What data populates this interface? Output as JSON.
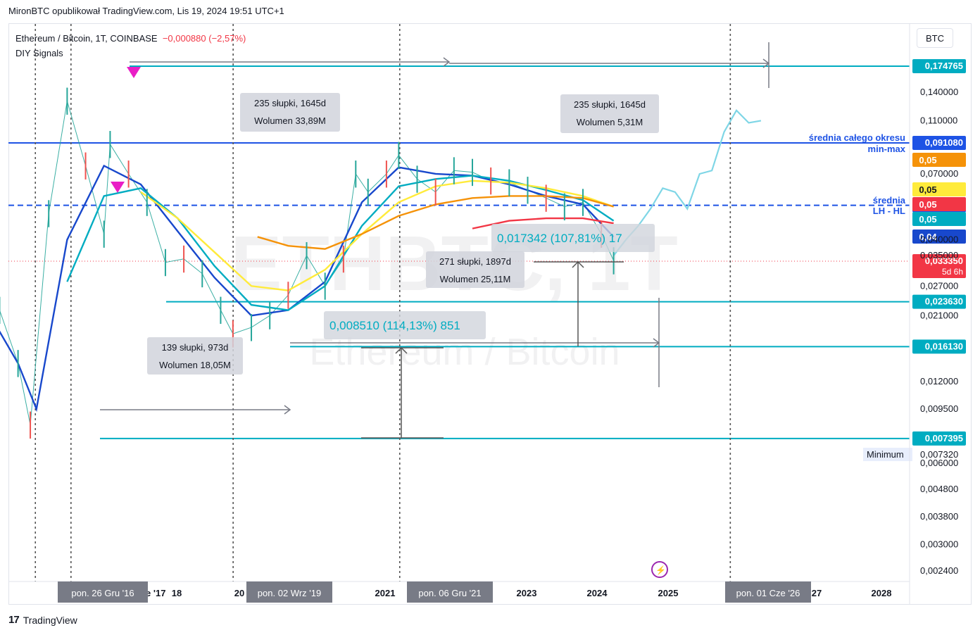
{
  "header": {
    "published_by": "MironBTC opublikował TradingView.com, Lis 19, 2024 19:51 UTC+1"
  },
  "legend": {
    "symbol": "Ethereum / Bitcoin, 1T, COINBASE",
    "change": "−0,000880 (−2,57%)",
    "indicator": "DIY Signals"
  },
  "currency_button": "BTC",
  "watermark": {
    "big": "ETHBTC, 1T",
    "small": "Ethereum / Bitcoin"
  },
  "colors": {
    "cyan_line": "#00acc1",
    "blue_line": "#1848cc",
    "dark_blue_level": "#1e53e5",
    "orange_ma": "#f59208",
    "yellow_ma": "#ffeb3b",
    "red_ma": "#f23645",
    "candle_up": "#26a69a",
    "candle_down": "#ef5350",
    "measure_gray": "#787b86",
    "signal_marker": "#e91ec6",
    "ghost_path": "#7fd6e6"
  },
  "chart_data": {
    "type": "line",
    "title": "Ethereum / Bitcoin, 1T, COINBASE",
    "y_scale": "log",
    "ylim": [
      0.0021,
      0.19
    ],
    "xlim": [
      "2016-04-01",
      "2028-11-01"
    ],
    "price_axis_ticks": [
      "0,140000",
      "0,110000",
      "0,070000",
      "0,040000",
      "0,035000",
      "0,027000",
      "0,021000",
      "0,012000",
      "0,009500",
      "0,006000",
      "0,004800",
      "0,003800",
      "0,003000",
      "0,002400"
    ],
    "time_axis_ticks": [
      "2017",
      "2018",
      "2019",
      "2020",
      "2021",
      "2022",
      "2023",
      "2024",
      "2025",
      "2026",
      "2027",
      "2028"
    ],
    "time_axis_labels_visible": [
      "ze '17",
      "18",
      "20",
      "2021",
      "2023",
      "2024",
      "2025",
      "27",
      "2028"
    ],
    "time_markers": [
      "pon. 26 Gru '16",
      "pon. 02 Wrz '19",
      "pon. 06 Gru '21",
      "pon. 01 Cze '26"
    ],
    "horizontal_levels": [
      {
        "price": 0.174765,
        "label": "0,174765",
        "color": "#00acc1",
        "style": "solid"
      },
      {
        "price": 0.09108,
        "label": "0,091080",
        "color": "#1e53e5",
        "style": "solid",
        "note": "średnia całego okresu min-max"
      },
      {
        "price": 0.053605,
        "label": "0,053605",
        "color": "#1e53e5",
        "style": "dashed",
        "note": "średnia LH - HL"
      },
      {
        "price": 0.03335,
        "label": "0,033350",
        "color": "#f23645",
        "style": "dotted",
        "note": "5d 6h"
      },
      {
        "price": 0.02363,
        "label": "0,023630",
        "color": "#00acc1",
        "style": "solid"
      },
      {
        "price": 0.01613,
        "label": "0,016130",
        "color": "#00acc1",
        "style": "solid"
      },
      {
        "price": 0.007395,
        "label": "0,007395",
        "color": "#00acc1",
        "style": "solid"
      }
    ],
    "minimum": {
      "label": "Minimum",
      "price": "0,007320"
    },
    "ma_value_labels": [
      {
        "label": "0,05",
        "color": "#f59208"
      },
      {
        "label": "0,05",
        "color": "#ffeb3b"
      },
      {
        "label": "0,05",
        "color": "#f23645"
      },
      {
        "label": "0,05",
        "color": "#00acc1"
      },
      {
        "label": "0,04",
        "color": "#1848cc"
      }
    ],
    "level_notes": [
      "średnia całego okresu",
      "min-max",
      "średnia",
      "LH - HL"
    ],
    "measurements": [
      {
        "bars": "235 słupki, 1645d",
        "volume": "Wolumen 33,89M"
      },
      {
        "bars": "235 słupki, 1645d",
        "volume": "Wolumen 5,31M"
      },
      {
        "bars": "139 słupki, 973d",
        "volume": "Wolumen 18,05M"
      },
      {
        "bars": "271 słupki, 1897d",
        "volume": "Wolumen 25,11M"
      }
    ],
    "price_ranges": [
      {
        "text": "0,008510 (114,13%) 851"
      },
      {
        "text": "0,017342 (107,81%) 17"
      }
    ],
    "series": [
      {
        "name": "ETHBTC close",
        "color": "#26a69a",
        "x": [
          "2016-04",
          "2016-07",
          "2016-10",
          "2016-12",
          "2017-03",
          "2017-06",
          "2017-09",
          "2017-12",
          "2018-01",
          "2018-04",
          "2018-07",
          "2018-10",
          "2019-01",
          "2019-04",
          "2019-07",
          "2019-09",
          "2019-12",
          "2020-03",
          "2020-06",
          "2020-09",
          "2020-12",
          "2021-03",
          "2021-05",
          "2021-07",
          "2021-10",
          "2021-12",
          "2022-03",
          "2022-06",
          "2022-09",
          "2022-12",
          "2023-03",
          "2023-06",
          "2023-09",
          "2023-12",
          "2024-03",
          "2024-06",
          "2024-09",
          "2024-11"
        ],
        "y": [
          0.028,
          0.022,
          0.014,
          0.0083,
          0.05,
          0.13,
          0.075,
          0.042,
          0.09,
          0.07,
          0.055,
          0.033,
          0.034,
          0.03,
          0.022,
          0.018,
          0.019,
          0.021,
          0.025,
          0.035,
          0.027,
          0.034,
          0.07,
          0.06,
          0.07,
          0.082,
          0.067,
          0.06,
          0.072,
          0.071,
          0.066,
          0.065,
          0.061,
          0.057,
          0.053,
          0.055,
          0.042,
          0.0335
        ]
      },
      {
        "name": "Fast MA",
        "color": "#1848cc",
        "x": [
          "2016-04",
          "2016-10",
          "2017-01",
          "2017-06",
          "2017-12",
          "2018-06",
          "2018-12",
          "2019-06",
          "2019-12",
          "2020-06",
          "2020-12",
          "2021-06",
          "2021-12",
          "2022-06",
          "2022-12",
          "2023-06",
          "2023-12",
          "2024-06",
          "2024-11"
        ],
        "y": [
          0.024,
          0.014,
          0.0095,
          0.04,
          0.075,
          0.064,
          0.043,
          0.029,
          0.021,
          0.022,
          0.028,
          0.055,
          0.074,
          0.07,
          0.069,
          0.064,
          0.058,
          0.054,
          0.041
        ]
      },
      {
        "name": "Slow MA",
        "color": "#00acc1",
        "x": [
          "2017-06",
          "2017-12",
          "2018-06",
          "2018-12",
          "2019-06",
          "2019-12",
          "2020-06",
          "2020-12",
          "2021-06",
          "2021-12",
          "2022-06",
          "2022-12",
          "2023-06",
          "2023-12",
          "2024-06",
          "2024-11"
        ],
        "y": [
          0.028,
          0.058,
          0.062,
          0.048,
          0.032,
          0.023,
          0.022,
          0.027,
          0.045,
          0.063,
          0.067,
          0.069,
          0.066,
          0.061,
          0.056,
          0.047
        ]
      },
      {
        "name": "Yellow MA",
        "color": "#ffeb3b",
        "x": [
          "2018-06",
          "2018-12",
          "2019-06",
          "2019-12",
          "2020-06",
          "2020-12",
          "2021-06",
          "2021-12",
          "2022-06",
          "2022-12",
          "2023-06",
          "2023-12",
          "2024-06",
          "2024-11"
        ],
        "y": [
          0.06,
          0.048,
          0.036,
          0.027,
          0.026,
          0.031,
          0.042,
          0.055,
          0.063,
          0.066,
          0.065,
          0.062,
          0.058,
          0.053
        ]
      },
      {
        "name": "Orange MA",
        "color": "#f59208",
        "x": [
          "2020-01",
          "2020-06",
          "2020-12",
          "2021-06",
          "2021-12",
          "2022-06",
          "2022-12",
          "2023-06",
          "2023-12",
          "2024-06",
          "2024-11"
        ],
        "y": [
          0.041,
          0.038,
          0.037,
          0.042,
          0.049,
          0.054,
          0.057,
          0.058,
          0.058,
          0.057,
          0.053
        ]
      },
      {
        "name": "Red MA",
        "color": "#f23645",
        "x": [
          "2022-12",
          "2023-06",
          "2023-12",
          "2024-06",
          "2024-11"
        ],
        "y": [
          0.044,
          0.047,
          0.048,
          0.048,
          0.046
        ]
      },
      {
        "name": "Projection",
        "color": "#7fd6e6",
        "x": [
          "2024-11",
          "2025-01",
          "2025-03",
          "2025-05",
          "2025-07",
          "2025-09",
          "2025-11",
          "2026-01",
          "2026-03",
          "2026-05",
          "2026-07",
          "2026-09",
          "2026-11"
        ],
        "y": [
          0.035,
          0.04,
          0.045,
          0.052,
          0.062,
          0.06,
          0.052,
          0.07,
          0.072,
          0.1,
          0.12,
          0.108,
          0.11
        ]
      }
    ]
  },
  "footer": {
    "brand": "TradingView"
  }
}
